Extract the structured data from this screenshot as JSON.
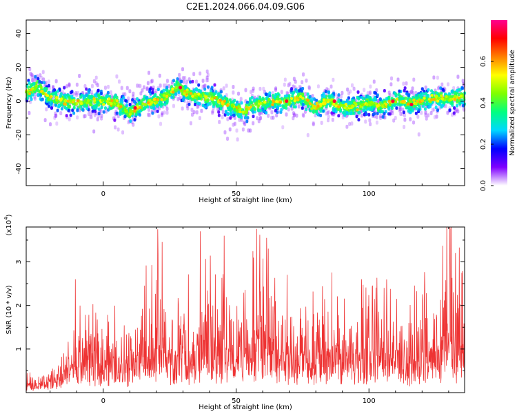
{
  "figure_title": "C2E1.2024.066.04.09.G06",
  "chart_data": [
    {
      "type": "heatmap",
      "title": "C2E1.2024.066.04.09.G06",
      "xlabel": "Height of straight line (km)",
      "ylabel": "Frequency (Hz)",
      "xlim": [
        -29,
        136
      ],
      "ylim": [
        -50,
        48
      ],
      "xticks": [
        0,
        50,
        100
      ],
      "yticks": [
        -40,
        -20,
        0,
        20,
        40
      ],
      "colorbar": {
        "label": "Normalized spectral amplitude",
        "range": [
          0,
          0.8
        ],
        "ticks": [
          0.0,
          0.2,
          0.4,
          0.6
        ],
        "colormap": [
          "#ffffff",
          "#7f00ff",
          "#0000ff",
          "#00d8ff",
          "#00ff80",
          "#7fff00",
          "#ffff00",
          "#ff8000",
          "#ff0000",
          "#ff0090"
        ]
      },
      "ridge_center_hz": {
        "x": [
          -29,
          -25,
          -20,
          -15,
          -10,
          -5,
          0,
          5,
          10,
          15,
          20,
          25,
          28,
          30,
          35,
          40,
          45,
          50,
          53,
          55,
          60,
          65,
          70,
          75,
          80,
          85,
          90,
          95,
          100,
          105,
          110,
          115,
          120,
          125,
          130,
          136
        ],
        "y": [
          5,
          9,
          2,
          0,
          -1,
          0,
          0,
          -1,
          -7,
          -2,
          0,
          4,
          9,
          6,
          3,
          2,
          -1,
          -4,
          -7,
          -3,
          -1,
          0,
          0,
          2,
          -4,
          1,
          -4,
          -3,
          -1,
          -3,
          1,
          -1,
          0,
          2,
          1,
          3
        ]
      },
      "noise_band_hz": 9,
      "peak_points": [
        {
          "x": 12,
          "y": -4
        },
        {
          "x": 29,
          "y": 8
        },
        {
          "x": 69,
          "y": 0
        },
        {
          "x": 87,
          "y": 0
        },
        {
          "x": 109,
          "y": 0
        },
        {
          "x": 116,
          "y": -2
        }
      ]
    },
    {
      "type": "line",
      "xlabel": "Height of straight line (km)",
      "ylabel": "SNR (10 * v/v)",
      "yscale_label": "(x10",
      "yscale_exp": "4",
      "yscale_close": ")",
      "xlim": [
        -29,
        136
      ],
      "ylim": [
        0,
        3.8
      ],
      "xticks": [
        0,
        50,
        100
      ],
      "yticks": [
        1,
        2,
        3
      ],
      "series_color": "#ee3333",
      "envelope": {
        "x": [
          -29,
          -25,
          -20,
          -15,
          -10,
          -5,
          0,
          5,
          10,
          15,
          20,
          25,
          30,
          35,
          40,
          45,
          50,
          55,
          60,
          65,
          70,
          75,
          80,
          85,
          90,
          95,
          100,
          105,
          110,
          115,
          120,
          125,
          130,
          136
        ],
        "y": [
          0.5,
          0.4,
          0.5,
          0.9,
          1.3,
          1.5,
          1.3,
          1.4,
          1.4,
          1.6,
          2.6,
          1.7,
          1.8,
          2.0,
          2.1,
          1.9,
          1.7,
          2.0,
          2.8,
          2.1,
          1.9,
          1.7,
          1.6,
          1.9,
          1.4,
          1.6,
          1.8,
          1.9,
          1.7,
          1.6,
          1.7,
          1.9,
          2.9,
          1.7
        ]
      },
      "spikes": [
        {
          "x": -10.5,
          "y": 2.6
        },
        {
          "x": 20.5,
          "y": 3.75
        },
        {
          "x": 36.5,
          "y": 3.7
        },
        {
          "x": 45.5,
          "y": 3.6
        },
        {
          "x": 61.5,
          "y": 3.55
        },
        {
          "x": 131,
          "y": 3.8
        }
      ]
    }
  ]
}
